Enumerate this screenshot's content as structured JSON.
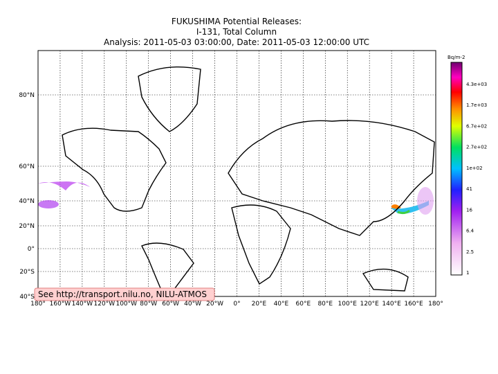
{
  "header": {
    "title_lines": [
      "FUKUSHIMA Potential Releases:",
      "I-131, Total Column",
      "Analysis: 2011-05-03  03:00:00, Date: 2011-05-03  12:00:00 UTC"
    ]
  },
  "map": {
    "lat_labels": [
      "80°N",
      "60°N",
      "40°N",
      "20°N",
      "0°",
      "20°S",
      "40°S"
    ],
    "lon_labels": [
      "180°",
      "160°W",
      "140°W",
      "120°W",
      "100°W",
      "80°W",
      "60°W",
      "40°W",
      "20°W",
      "0°",
      "20°E",
      "40°E",
      "60°E",
      "80°E",
      "100°E",
      "120°E",
      "140°E",
      "160°E",
      "180°"
    ]
  },
  "colorbar": {
    "unit": "Bq/m-2",
    "labels": [
      "4.3e+03",
      "1.7e+03",
      "6.7e+02",
      "2.7e+02",
      "1e+02",
      "41",
      "16",
      "6.4",
      "2.5",
      "1"
    ]
  },
  "credit": "See http://transport.nilu.no, NILU-ATMOS"
}
